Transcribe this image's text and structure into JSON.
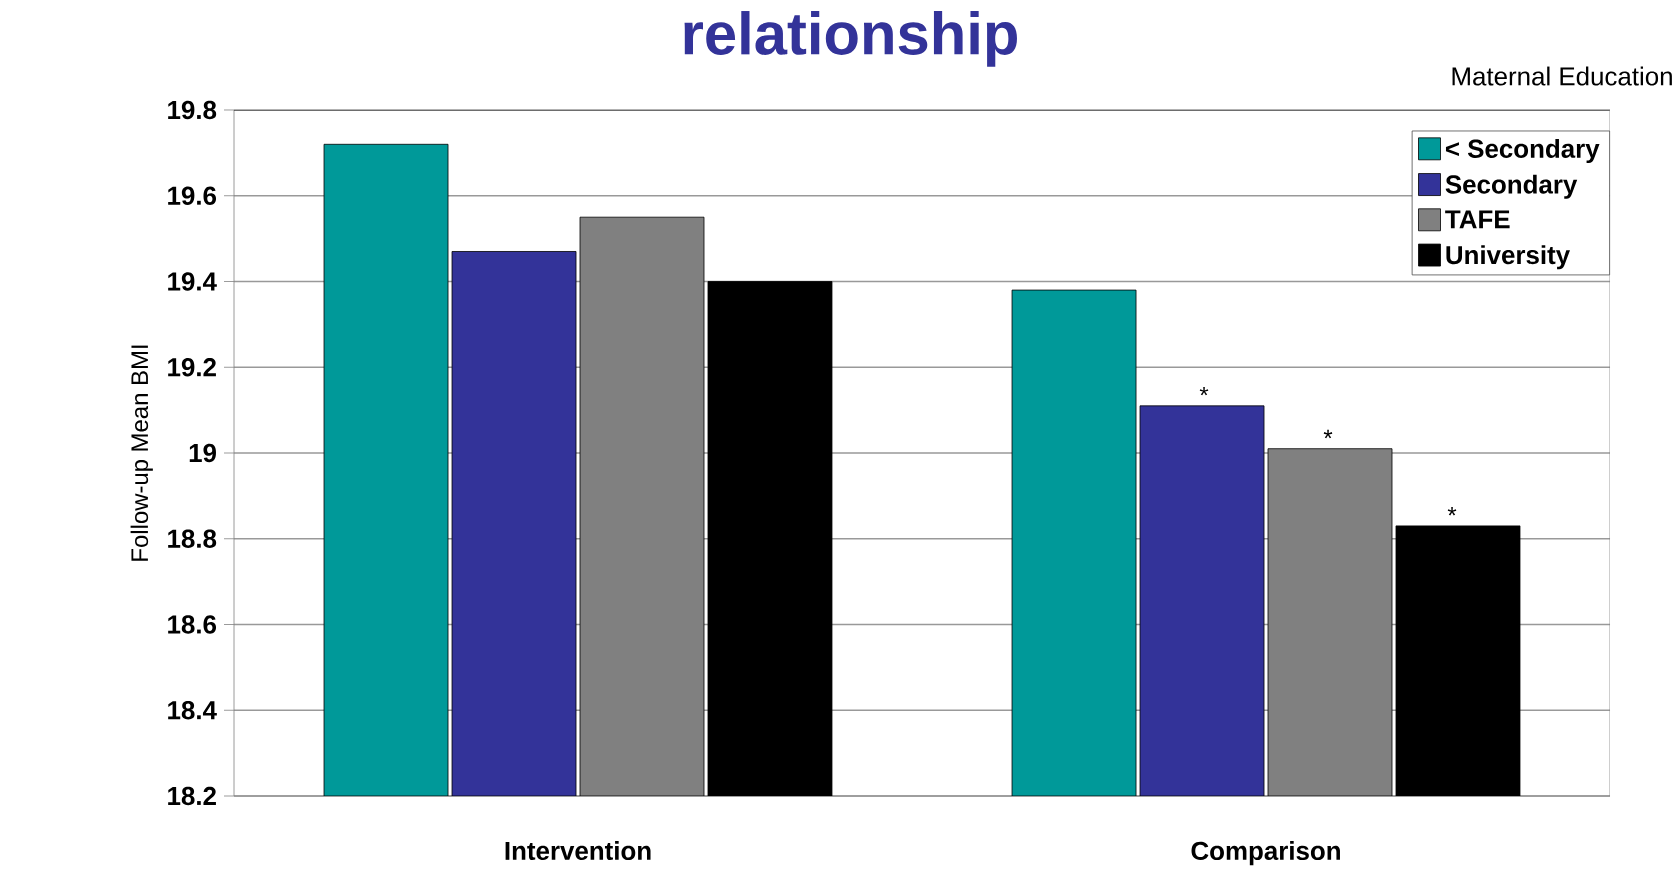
{
  "chart_data": {
    "type": "bar",
    "title": "relationship",
    "ylabel": "Follow-up Mean BMI",
    "legend_title": "Maternal Education",
    "categories": [
      "Intervention",
      "Comparison"
    ],
    "series": [
      {
        "name": "< Secondary",
        "color": "#009999",
        "values": [
          19.72,
          19.38
        ]
      },
      {
        "name": "Secondary",
        "color": "#333399",
        "values": [
          19.47,
          19.11
        ],
        "value_labels": [
          null,
          "*"
        ]
      },
      {
        "name": "TAFE",
        "color": "#808080",
        "values": [
          19.55,
          19.01
        ],
        "value_labels": [
          null,
          "*"
        ]
      },
      {
        "name": "University",
        "color": "#000000",
        "values": [
          19.4,
          18.83
        ],
        "value_labels": [
          null,
          "*"
        ]
      }
    ],
    "ylim": [
      18.2,
      19.8
    ],
    "yticks": [
      18.2,
      18.4,
      18.6,
      18.8,
      19,
      19.2,
      19.4,
      19.6,
      19.8
    ],
    "grid": "y",
    "legend": "top right"
  }
}
